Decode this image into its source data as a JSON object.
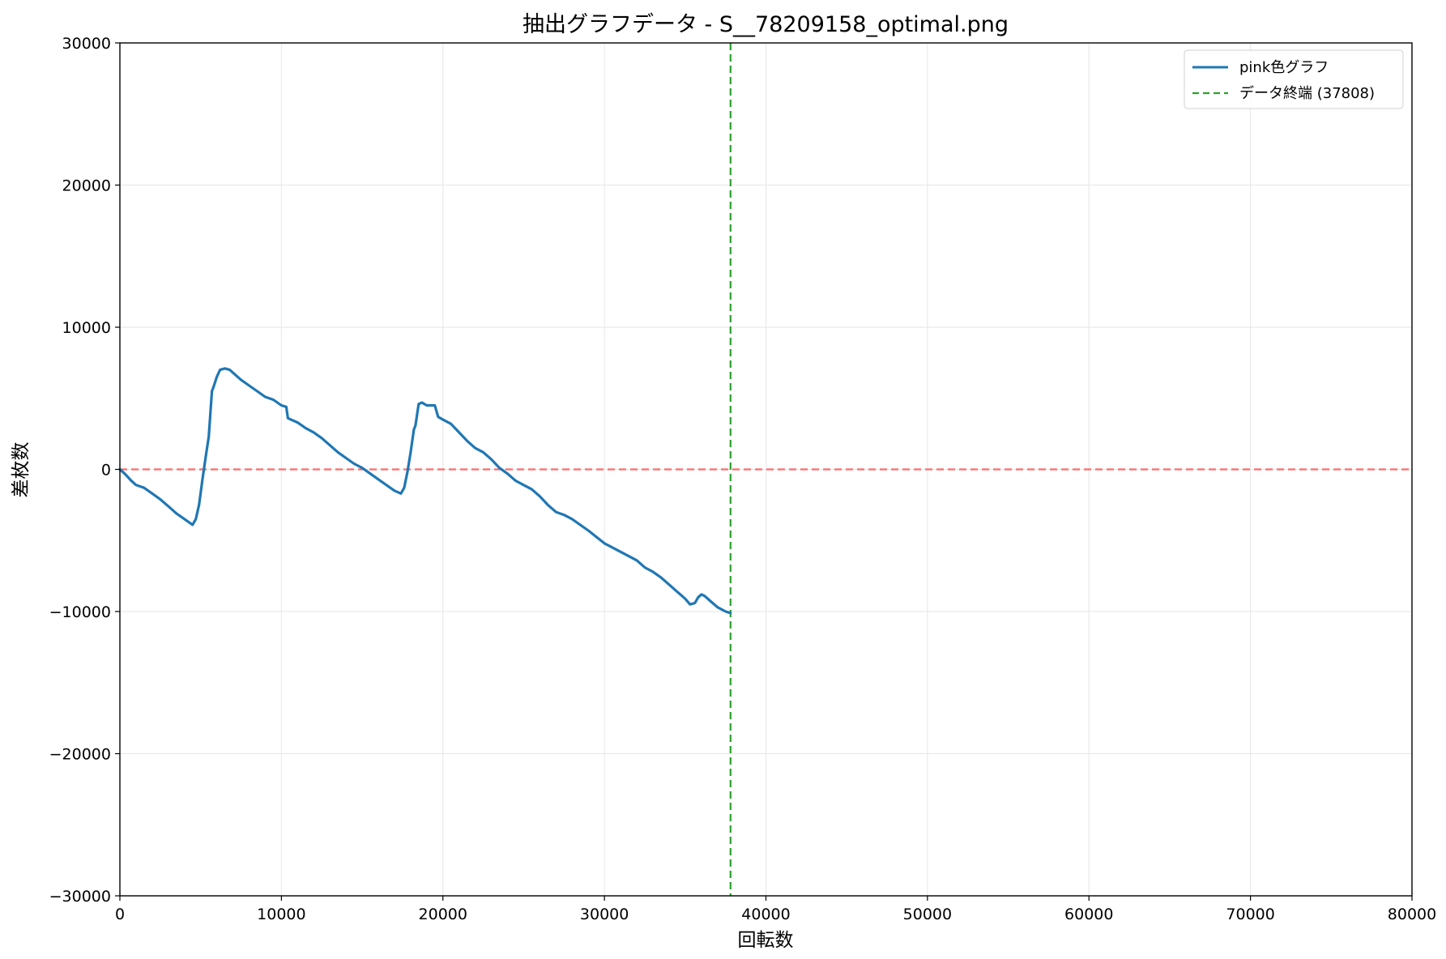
{
  "chart_data": {
    "type": "line",
    "title": "抽出グラフデータ - S__78209158_optimal.png",
    "xlabel": "回転数",
    "ylabel": "差枚数",
    "xlim": [
      0,
      80000
    ],
    "ylim": [
      -30000,
      30000
    ],
    "xticks": [
      0,
      10000,
      20000,
      30000,
      40000,
      50000,
      60000,
      70000,
      80000
    ],
    "yticks": [
      -30000,
      -20000,
      -10000,
      0,
      10000,
      20000,
      30000
    ],
    "xtick_labels": [
      "0",
      "10000",
      "20000",
      "30000",
      "40000",
      "50000",
      "60000",
      "70000",
      "80000"
    ],
    "ytick_labels": [
      "−30000",
      "−20000",
      "−10000",
      "0",
      "10000",
      "20000",
      "30000"
    ],
    "grid": true,
    "legend_position": "top-right",
    "series": [
      {
        "name": "pink色グラフ",
        "color": "#1f77b4",
        "style": "solid",
        "x": [
          0,
          300,
          700,
          1000,
          1500,
          2000,
          2500,
          3000,
          3500,
          4000,
          4500,
          4700,
          4900,
          5100,
          5300,
          5500,
          5700,
          5800,
          6000,
          6200,
          6500,
          6800,
          7000,
          7500,
          8000,
          8500,
          9000,
          9500,
          10000,
          10300,
          10400,
          10600,
          11000,
          11500,
          12000,
          12500,
          13000,
          13500,
          14000,
          14500,
          15000,
          16000,
          17000,
          17400,
          17600,
          17800,
          18000,
          18200,
          18300,
          18500,
          18700,
          19000,
          19500,
          19700,
          20000,
          20500,
          21000,
          21500,
          22000,
          22500,
          23000,
          23500,
          24000,
          24500,
          25000,
          25500,
          26000,
          26500,
          27000,
          27500,
          28000,
          29000,
          30000,
          31000,
          32000,
          32500,
          33000,
          33500,
          34000,
          34500,
          35000,
          35300,
          35600,
          35800,
          36000,
          36200,
          36500,
          37000,
          37500,
          37808
        ],
        "y": [
          0,
          -300,
          -800,
          -1100,
          -1300,
          -1700,
          -2100,
          -2600,
          -3100,
          -3500,
          -3900,
          -3500,
          -2500,
          -800,
          800,
          2300,
          5500,
          5800,
          6500,
          7000,
          7100,
          7000,
          6800,
          6300,
          5900,
          5500,
          5100,
          4900,
          4500,
          4400,
          3600,
          3500,
          3300,
          2900,
          2600,
          2200,
          1700,
          1200,
          800,
          400,
          100,
          -700,
          -1500,
          -1700,
          -1300,
          -200,
          1200,
          2800,
          3100,
          4600,
          4700,
          4500,
          4500,
          3700,
          3500,
          3200,
          2600,
          2000,
          1500,
          1200,
          700,
          100,
          -300,
          -800,
          -1100,
          -1400,
          -1900,
          -2500,
          -3000,
          -3200,
          -3500,
          -4300,
          -5200,
          -5800,
          -6400,
          -6900,
          -7200,
          -7600,
          -8100,
          -8600,
          -9100,
          -9500,
          -9400,
          -9000,
          -8800,
          -8900,
          -9200,
          -9700,
          -10000,
          -10100
        ]
      }
    ],
    "reference_lines": [
      {
        "name": "データ終端 (37808)",
        "orientation": "vertical",
        "value": 37808,
        "color": "#2ca02c",
        "style": "dashed",
        "in_legend": true
      },
      {
        "name": "",
        "orientation": "horizontal",
        "value": 0,
        "color": "#ff6b6b",
        "style": "dashed",
        "in_legend": false
      }
    ]
  }
}
